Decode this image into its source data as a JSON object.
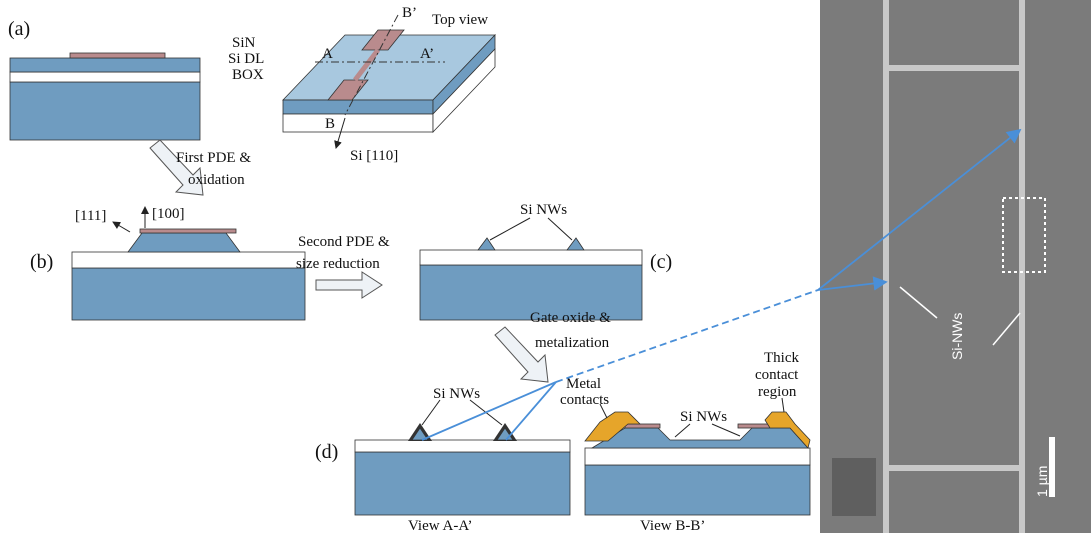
{
  "panel_a": {
    "label": "(a)",
    "layers": [
      "SiN",
      "Si DL",
      "BOX"
    ],
    "top_view": "Top view",
    "markers": {
      "b_prime": "B’",
      "a": "A",
      "a_prime": "A’",
      "b": "B"
    },
    "direction": "Si [110]"
  },
  "step_1": [
    "First PDE &",
    "oxidation"
  ],
  "panel_b": {
    "label": "(b)",
    "dir_111": "[111]",
    "dir_100": "[100]"
  },
  "step_2": [
    "Second PDE &",
    "size reduction"
  ],
  "panel_c": {
    "label": "(c)",
    "nws": "Si NWs"
  },
  "step_3": [
    "Gate oxide &",
    "metalization"
  ],
  "panel_d": {
    "label": "(d)",
    "nws_left": "Si NWs",
    "metal": [
      "Metal",
      "contacts"
    ],
    "nws_right": "Si NWs",
    "thick": [
      "Thick",
      "contact",
      "region"
    ],
    "view_a": "View A-A’",
    "view_b": "View B-B’"
  },
  "sem": {
    "nws": "Si-NWs",
    "scale": "1 µm"
  }
}
